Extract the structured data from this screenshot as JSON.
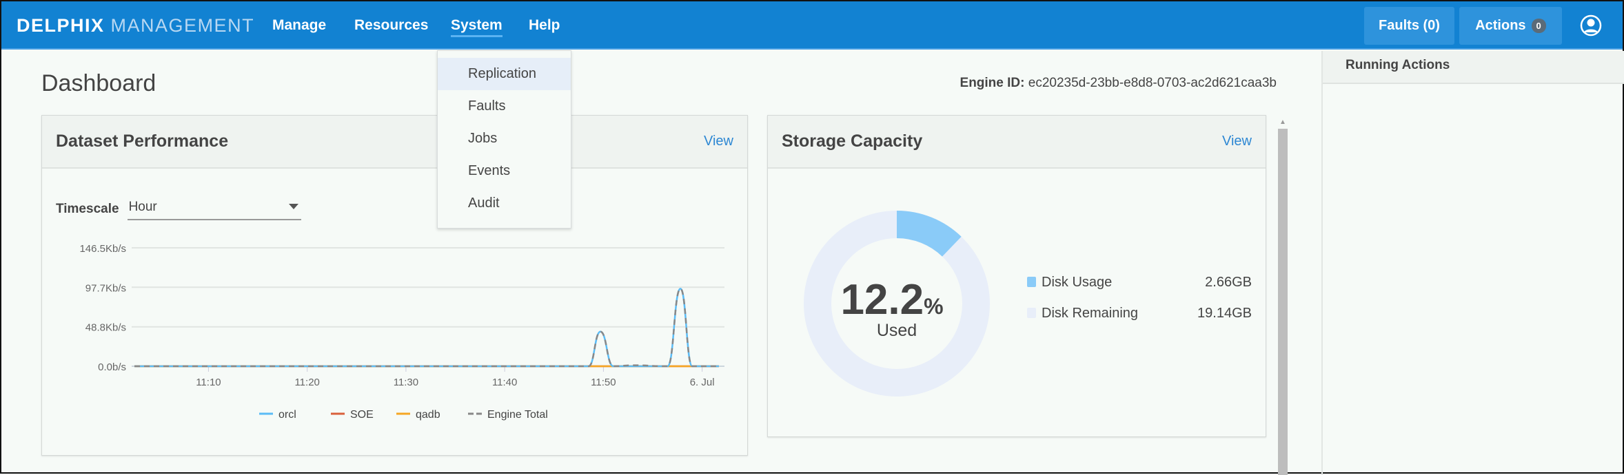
{
  "nav": {
    "logo_bold": "DELPHIX",
    "logo_light": "MANAGEMENT",
    "links": [
      "Manage",
      "Resources",
      "System",
      "Help"
    ],
    "active": "System",
    "faults": "Faults (0)",
    "actions": "Actions",
    "actions_count": "0",
    "user_icon": "user-circle-icon"
  },
  "dropdown": {
    "items": [
      "Replication",
      "Faults",
      "Jobs",
      "Events",
      "Audit"
    ],
    "highlighted": "Replication"
  },
  "page": {
    "title": "Dashboard",
    "engine_label": "Engine ID:",
    "engine_id": "ec20235d-23bb-e8d8-0703-ac2d621caa3b"
  },
  "perf": {
    "title": "Dataset Performance",
    "view": "View",
    "timescale_label": "Timescale",
    "timescale_value": "Hour"
  },
  "storage": {
    "title": "Storage Capacity",
    "view": "View",
    "percent": "12.2",
    "percent_sign": "%",
    "used_label": "Used",
    "legend": [
      {
        "label": "Disk Usage",
        "value": "2.66GB",
        "color": "#8acbf8"
      },
      {
        "label": "Disk Remaining",
        "value": "19.14GB",
        "color": "#e8eef9"
      }
    ]
  },
  "right_panel": {
    "title": "Running Actions"
  },
  "chart_data": {
    "type": "line",
    "ylabel": "",
    "xlabel": "",
    "y_ticks": [
      "0.0b/s",
      "48.8Kb/s",
      "97.7Kb/s",
      "146.5Kb/s"
    ],
    "y_tick_values": [
      0,
      48.8,
      97.7,
      146.5
    ],
    "ylim": [
      0,
      146.5
    ],
    "x_ticks": [
      "11:10",
      "11:20",
      "11:30",
      "11:40",
      "11:50",
      "6. Jul"
    ],
    "x_tick_values": [
      "11:10",
      "11:20",
      "11:30",
      "11:40",
      "11:50",
      "12:00"
    ],
    "xlim": [
      "11:02.5",
      "12:01.7"
    ],
    "grid": true,
    "legend": "bottom",
    "x": [
      "11:02.5",
      "11:48.5",
      "11:49.7",
      "11:51",
      "11:53",
      "11:56.5",
      "11:57.8",
      "11:59",
      "12:01.7"
    ],
    "series": [
      {
        "name": "orcl",
        "color": "#5bbcf6",
        "dash": false,
        "values": [
          0,
          0,
          42.8,
          0,
          0,
          0,
          95.9,
          0,
          0
        ]
      },
      {
        "name": "SOE",
        "color": "#d9603b",
        "dash": false,
        "values": [
          0,
          0,
          0,
          0,
          0,
          0,
          0,
          0,
          0
        ]
      },
      {
        "name": "qadb",
        "color": "#f5a623",
        "dash": false,
        "values": [
          0,
          0,
          0,
          0,
          0,
          0,
          0,
          0,
          0
        ]
      },
      {
        "name": "Engine Total",
        "color": "#888888",
        "dash": true,
        "values": [
          0,
          0,
          42.8,
          0,
          1.2,
          0,
          95.9,
          0,
          0
        ]
      }
    ]
  }
}
